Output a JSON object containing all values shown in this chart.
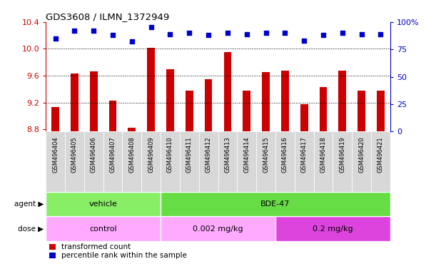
{
  "title": "GDS3608 / ILMN_1372949",
  "samples": [
    "GSM496404",
    "GSM496405",
    "GSM496406",
    "GSM496407",
    "GSM496408",
    "GSM496409",
    "GSM496410",
    "GSM496411",
    "GSM496412",
    "GSM496413",
    "GSM496414",
    "GSM496415",
    "GSM496416",
    "GSM496417",
    "GSM496418",
    "GSM496419",
    "GSM496420",
    "GSM496421"
  ],
  "bar_values": [
    9.13,
    9.63,
    9.67,
    9.23,
    8.83,
    10.01,
    9.7,
    9.38,
    9.55,
    9.95,
    9.38,
    9.65,
    9.68,
    9.18,
    9.43,
    9.68,
    9.38,
    9.38
  ],
  "dot_values": [
    85,
    92,
    92,
    88,
    82,
    95,
    89,
    90,
    88,
    90,
    89,
    90,
    90,
    83,
    88,
    90,
    89,
    89
  ],
  "bar_color": "#cc0000",
  "dot_color": "#0000cc",
  "ylim_left": [
    8.77,
    10.4
  ],
  "ylim_right": [
    0,
    100
  ],
  "yticks_left": [
    8.8,
    9.2,
    9.6,
    10.0,
    10.4
  ],
  "yticks_right": [
    0,
    25,
    50,
    75,
    100
  ],
  "ytick_labels_right": [
    "0",
    "25",
    "50",
    "75",
    "100%"
  ],
  "grid_values": [
    9.2,
    9.6,
    10.0
  ],
  "agent_groups": [
    {
      "label": "vehicle",
      "start": 0,
      "end": 5,
      "color": "#88ee66"
    },
    {
      "label": "BDE-47",
      "start": 6,
      "end": 17,
      "color": "#66dd44"
    }
  ],
  "dose_groups": [
    {
      "label": "control",
      "start": 0,
      "end": 5,
      "color": "#ffaaff"
    },
    {
      "label": "0.002 mg/kg",
      "start": 6,
      "end": 11,
      "color": "#ffaaff"
    },
    {
      "label": "0.2 mg/kg",
      "start": 12,
      "end": 17,
      "color": "#dd44dd"
    }
  ],
  "legend_bar_label": "transformed count",
  "legend_dot_label": "percentile rank within the sample",
  "label_agent": "agent",
  "label_dose": "dose",
  "background_color": "#ffffff",
  "xtick_bg": "#d8d8d8",
  "bar_width": 0.4
}
